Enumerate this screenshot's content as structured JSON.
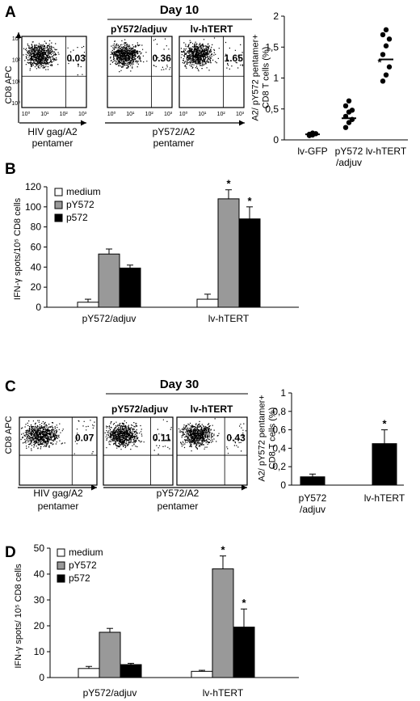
{
  "panels": {
    "A": {
      "label": "A",
      "day_title": "Day 10",
      "flow": {
        "y_label": "CD8 APC",
        "plots": [
          {
            "header": "",
            "quadrant_value": "0.03"
          },
          {
            "header": "pY572/adjuv",
            "quadrant_value": "0.36"
          },
          {
            "header": "lv-hTERT",
            "quadrant_value": "1.65"
          }
        ],
        "x_label_left": [
          "HIV gag/A2",
          "pentamer"
        ],
        "x_label_right": [
          "pY572/A2",
          "pentamer"
        ],
        "tick_labels": [
          "10⁰",
          "10¹",
          "10²",
          "10³"
        ]
      }
    },
    "B": {
      "label": "B"
    },
    "C": {
      "label": "C",
      "day_title": "Day 30",
      "flow": {
        "y_label": "CD8 APC",
        "plots": [
          {
            "header": "",
            "quadrant_value": "0.07"
          },
          {
            "header": "pY572/adjuv",
            "quadrant_value": "0.11"
          },
          {
            "header": "lv-hTERT",
            "quadrant_value": "0.43"
          }
        ],
        "x_label_left": [
          "HIV gag/A2",
          "pentamer"
        ],
        "x_label_right": [
          "pY572/A2",
          "pentamer"
        ]
      }
    },
    "D": {
      "label": "D"
    }
  },
  "chart_data": [
    {
      "id": "A_scatter",
      "type": "scatter",
      "ylabel": [
        "A2/ pY572 pentamer+",
        "CD8 T cells (%)"
      ],
      "ylim": [
        0,
        2
      ],
      "yticks": [
        "0",
        "0,5",
        "1",
        "1,5",
        "2"
      ],
      "categories": [
        "lv-GFP",
        [
          "pY572",
          "/adjuv"
        ],
        "lv-hTERT"
      ],
      "points": [
        [
          0.07,
          0.08,
          0.1,
          0.09,
          0.11
        ],
        [
          0.2,
          0.28,
          0.33,
          0.38,
          0.45,
          0.48,
          0.55,
          0.63
        ],
        [
          0.95,
          1.05,
          1.18,
          1.38,
          1.52,
          1.63,
          1.7,
          1.78
        ]
      ],
      "medians": [
        0.09,
        0.35,
        1.3
      ],
      "star_on": 2,
      "star": "*"
    },
    {
      "id": "B_bar",
      "type": "bar",
      "ylabel": "IFN-γ spots/10⁵ CD8 cells",
      "ylim": [
        0,
        120
      ],
      "yticks": [
        "0",
        "20",
        "40",
        "60",
        "80",
        "100",
        "120"
      ],
      "categories": [
        "pY572/adjuv",
        "lv-hTERT"
      ],
      "series": [
        {
          "name": "medium",
          "color": "#ffffff",
          "values": [
            5,
            8
          ],
          "errors": [
            3,
            5
          ],
          "stars": [
            "",
            ""
          ]
        },
        {
          "name": "pY572",
          "color": "#999999",
          "values": [
            53,
            108
          ],
          "errors": [
            5,
            9
          ],
          "stars": [
            "",
            "*"
          ]
        },
        {
          "name": "p572",
          "color": "#000000",
          "values": [
            39,
            88
          ],
          "errors": [
            3,
            12
          ],
          "stars": [
            "",
            "*"
          ]
        }
      ]
    },
    {
      "id": "C_bar",
      "type": "bar",
      "ylabel": [
        "A2/ pY572 pentamer+",
        "CD8 T cells (%)"
      ],
      "ylim": [
        0,
        1
      ],
      "yticks": [
        "0",
        "0,2",
        "0,4",
        "0,6",
        "0,8",
        "1"
      ],
      "categories": [
        [
          "pY572",
          "/adjuv"
        ],
        "lv-hTERT"
      ],
      "series": [
        {
          "name": "",
          "color": "#000000",
          "values": [
            0.09,
            0.45
          ],
          "errors": [
            0.03,
            0.15
          ],
          "stars": [
            "",
            "*"
          ]
        }
      ]
    },
    {
      "id": "D_bar",
      "type": "bar",
      "ylabel": "IFN-γ spots/ 10⁵ CD8 cells",
      "ylim": [
        0,
        50
      ],
      "yticks": [
        "0",
        "10",
        "20",
        "30",
        "40",
        "50"
      ],
      "categories": [
        "pY572/adjuv",
        "lv-hTERT"
      ],
      "series": [
        {
          "name": "medium",
          "color": "#ffffff",
          "values": [
            3.5,
            2.4
          ],
          "errors": [
            0.8,
            0.4
          ],
          "stars": [
            "",
            ""
          ]
        },
        {
          "name": "pY572",
          "color": "#999999",
          "values": [
            17.5,
            42
          ],
          "errors": [
            1.5,
            5
          ],
          "stars": [
            "",
            "*"
          ]
        },
        {
          "name": "p572",
          "color": "#000000",
          "values": [
            5,
            19.5
          ],
          "errors": [
            0.5,
            7
          ],
          "stars": [
            "",
            "*"
          ]
        }
      ]
    }
  ]
}
